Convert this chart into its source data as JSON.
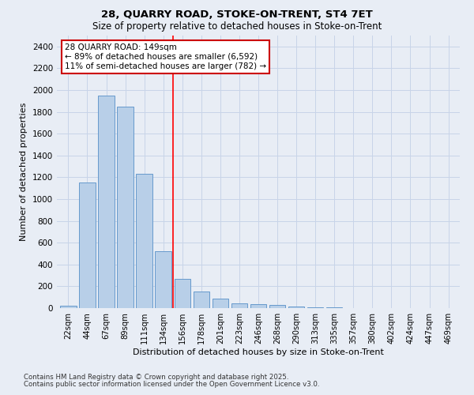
{
  "title1": "28, QUARRY ROAD, STOKE-ON-TRENT, ST4 7ET",
  "title2": "Size of property relative to detached houses in Stoke-on-Trent",
  "xlabel": "Distribution of detached houses by size in Stoke-on-Trent",
  "ylabel": "Number of detached properties",
  "categories": [
    "22sqm",
    "44sqm",
    "67sqm",
    "89sqm",
    "111sqm",
    "134sqm",
    "156sqm",
    "178sqm",
    "201sqm",
    "223sqm",
    "246sqm",
    "268sqm",
    "290sqm",
    "313sqm",
    "335sqm",
    "357sqm",
    "380sqm",
    "402sqm",
    "424sqm",
    "447sqm",
    "469sqm"
  ],
  "values": [
    20,
    1150,
    1950,
    1850,
    1230,
    520,
    270,
    155,
    90,
    45,
    35,
    28,
    15,
    8,
    5,
    3,
    2,
    2,
    1,
    1,
    2
  ],
  "bar_color": "#b8cfe8",
  "bar_edge_color": "#6699cc",
  "red_line_x": 6.0,
  "annotation_text": "28 QUARRY ROAD: 149sqm\n← 89% of detached houses are smaller (6,592)\n11% of semi-detached houses are larger (782) →",
  "annotation_box_facecolor": "#ffffff",
  "annotation_box_edgecolor": "#cc0000",
  "ylim": [
    0,
    2500
  ],
  "yticks": [
    0,
    200,
    400,
    600,
    800,
    1000,
    1200,
    1400,
    1600,
    1800,
    2000,
    2200,
    2400
  ],
  "grid_color": "#c8d4e8",
  "bg_color": "#e8edf5",
  "footer1": "Contains HM Land Registry data © Crown copyright and database right 2025.",
  "footer2": "Contains public sector information licensed under the Open Government Licence v3.0."
}
